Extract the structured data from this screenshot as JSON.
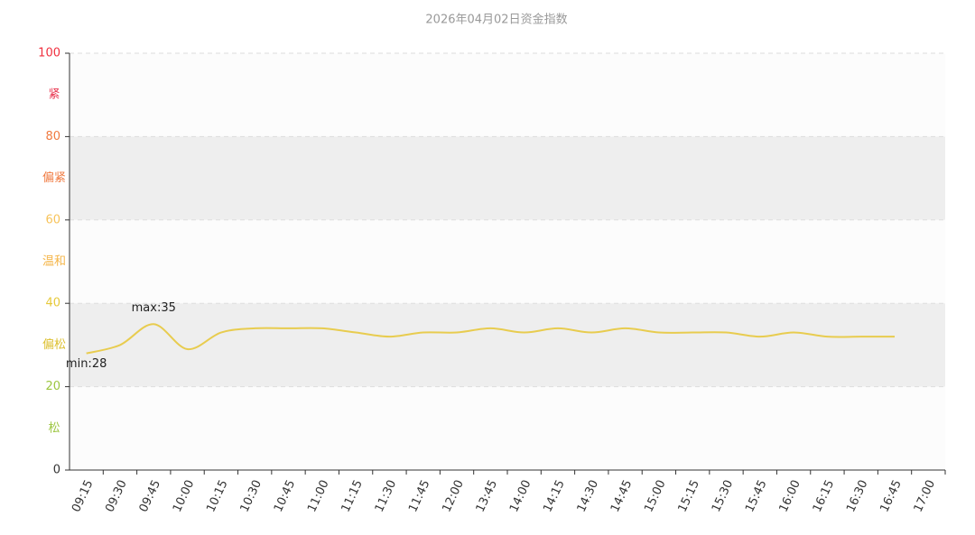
{
  "chart_data": {
    "type": "line",
    "title": "2026年04月02日资金指数",
    "categories": [
      "09:15",
      "09:30",
      "09:45",
      "10:00",
      "10:15",
      "10:30",
      "10:45",
      "11:00",
      "11:15",
      "11:30",
      "11:45",
      "12:00",
      "13:45",
      "14:00",
      "14:15",
      "14:30",
      "14:45",
      "15:00",
      "15:15",
      "15:30",
      "15:45",
      "16:00",
      "16:15",
      "16:30",
      "16:45",
      "17:00"
    ],
    "series": [
      {
        "name": "资金指数",
        "color": "#e8cc4f",
        "values": [
          28,
          30,
          35,
          29,
          33,
          34,
          34,
          34,
          33,
          32,
          33,
          33,
          34,
          33,
          34,
          33,
          34,
          33,
          33,
          33,
          32,
          33,
          32,
          32,
          32,
          null
        ]
      }
    ],
    "ylim": [
      0,
      100
    ],
    "yticks": [
      0,
      20,
      40,
      60,
      80,
      100
    ],
    "ytick_colors": [
      "#333333",
      "#9cc640",
      "#e6c93a",
      "#f7c35a",
      "#f07a40",
      "#f0303f"
    ],
    "grid": true,
    "smooth": true,
    "bands": [
      {
        "from": 80,
        "to": 100,
        "label": "紧",
        "color": "#e8344e",
        "fill": "#fcfcfc"
      },
      {
        "from": 60,
        "to": 80,
        "label": "偏紧",
        "color": "#f07a40",
        "fill": "#eeeeee"
      },
      {
        "from": 40,
        "to": 60,
        "label": "温和",
        "color": "#f5b64a",
        "fill": "#fcfcfc"
      },
      {
        "from": 20,
        "to": 40,
        "label": "偏松",
        "color": "#dcbf2e",
        "fill": "#eeeeee"
      },
      {
        "from": 0,
        "to": 20,
        "label": "松",
        "color": "#9cc640",
        "fill": "#fcfcfc"
      }
    ],
    "markers": {
      "max": "max:35",
      "min": "min:28"
    }
  }
}
